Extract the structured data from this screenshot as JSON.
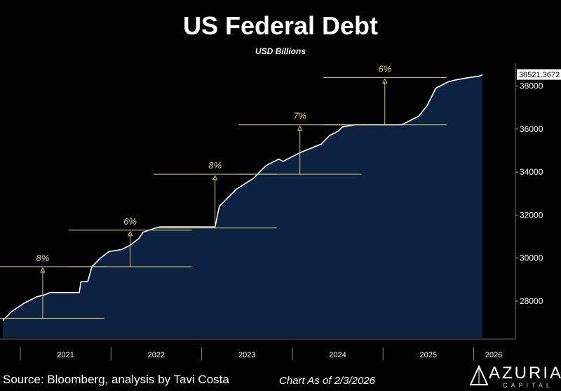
{
  "chart_data": {
    "type": "area",
    "title": "US Federal Debt",
    "subtitle": "USD Billions",
    "x_labels": [
      "2021",
      "2022",
      "2023",
      "2024",
      "2025",
      "2026"
    ],
    "y_ticks": [
      28000,
      30000,
      32000,
      34000,
      36000,
      38000
    ],
    "ylim": [
      26300,
      38900
    ],
    "last_value_label": "38521.3672",
    "series": [
      {
        "x": [
          2020.0,
          2020.1,
          2020.25,
          2020.4,
          2020.5,
          2020.55,
          2020.85,
          2020.9,
          2020.92,
          2021.0,
          2021.05,
          2021.15,
          2021.25,
          2021.4,
          2021.5,
          2021.6,
          2021.65,
          2021.8,
          2021.85,
          2022.0,
          2022.15,
          2022.25,
          2022.35,
          2022.5,
          2022.55,
          2022.75,
          2022.95,
          2023.0,
          2023.05,
          2023.1,
          2023.25,
          2023.3,
          2023.45,
          2023.5,
          2023.75,
          2023.85,
          2023.95,
          2024.0,
          2024.15,
          2024.25,
          2024.3,
          2024.45,
          2024.55,
          2024.65,
          2024.7,
          2024.9,
          2025.0,
          2025.05,
          2025.1,
          2025.25,
          2025.35,
          2025.5,
          2025.6,
          2025.65
        ],
        "y": [
          27100,
          27500,
          27900,
          28200,
          28300,
          28400,
          28400,
          28400,
          28900,
          28900,
          29600,
          30000,
          30300,
          30400,
          30600,
          30900,
          31200,
          31400,
          31450,
          31450,
          31450,
          31450,
          31450,
          31450,
          32400,
          33200,
          33700,
          33900,
          34100,
          34300,
          34600,
          34500,
          34800,
          34900,
          35300,
          35700,
          35900,
          36100,
          36200,
          36200,
          36200,
          36200,
          36200,
          36200,
          36200,
          36600,
          37100,
          37500,
          37900,
          38200,
          38300,
          38400,
          38450,
          38521
        ]
      }
    ],
    "annotations": [
      {
        "label": "8%",
        "x": 2020.47,
        "base": 27200,
        "top": 29600
      },
      {
        "label": "6%",
        "x": 2021.5,
        "base": 29600,
        "top": 31300
      },
      {
        "label": "8%",
        "x": 2022.5,
        "base": 31400,
        "top": 33900
      },
      {
        "label": "7%",
        "x": 2023.5,
        "base": 33900,
        "top": 36200
      },
      {
        "label": "6%",
        "x": 2024.5,
        "base": 36200,
        "top": 38400
      }
    ],
    "colors": {
      "area": "#0d2240",
      "line": "#ffffff",
      "annotation": "#d4c96a",
      "background": "#000000"
    }
  },
  "footer": {
    "source": "Source: Bloomberg, analysis by Tavi Costa",
    "as_of": "Chart As of 2/3/2026",
    "brand": "AZURIA",
    "brand_sub": "CAPITAL"
  }
}
